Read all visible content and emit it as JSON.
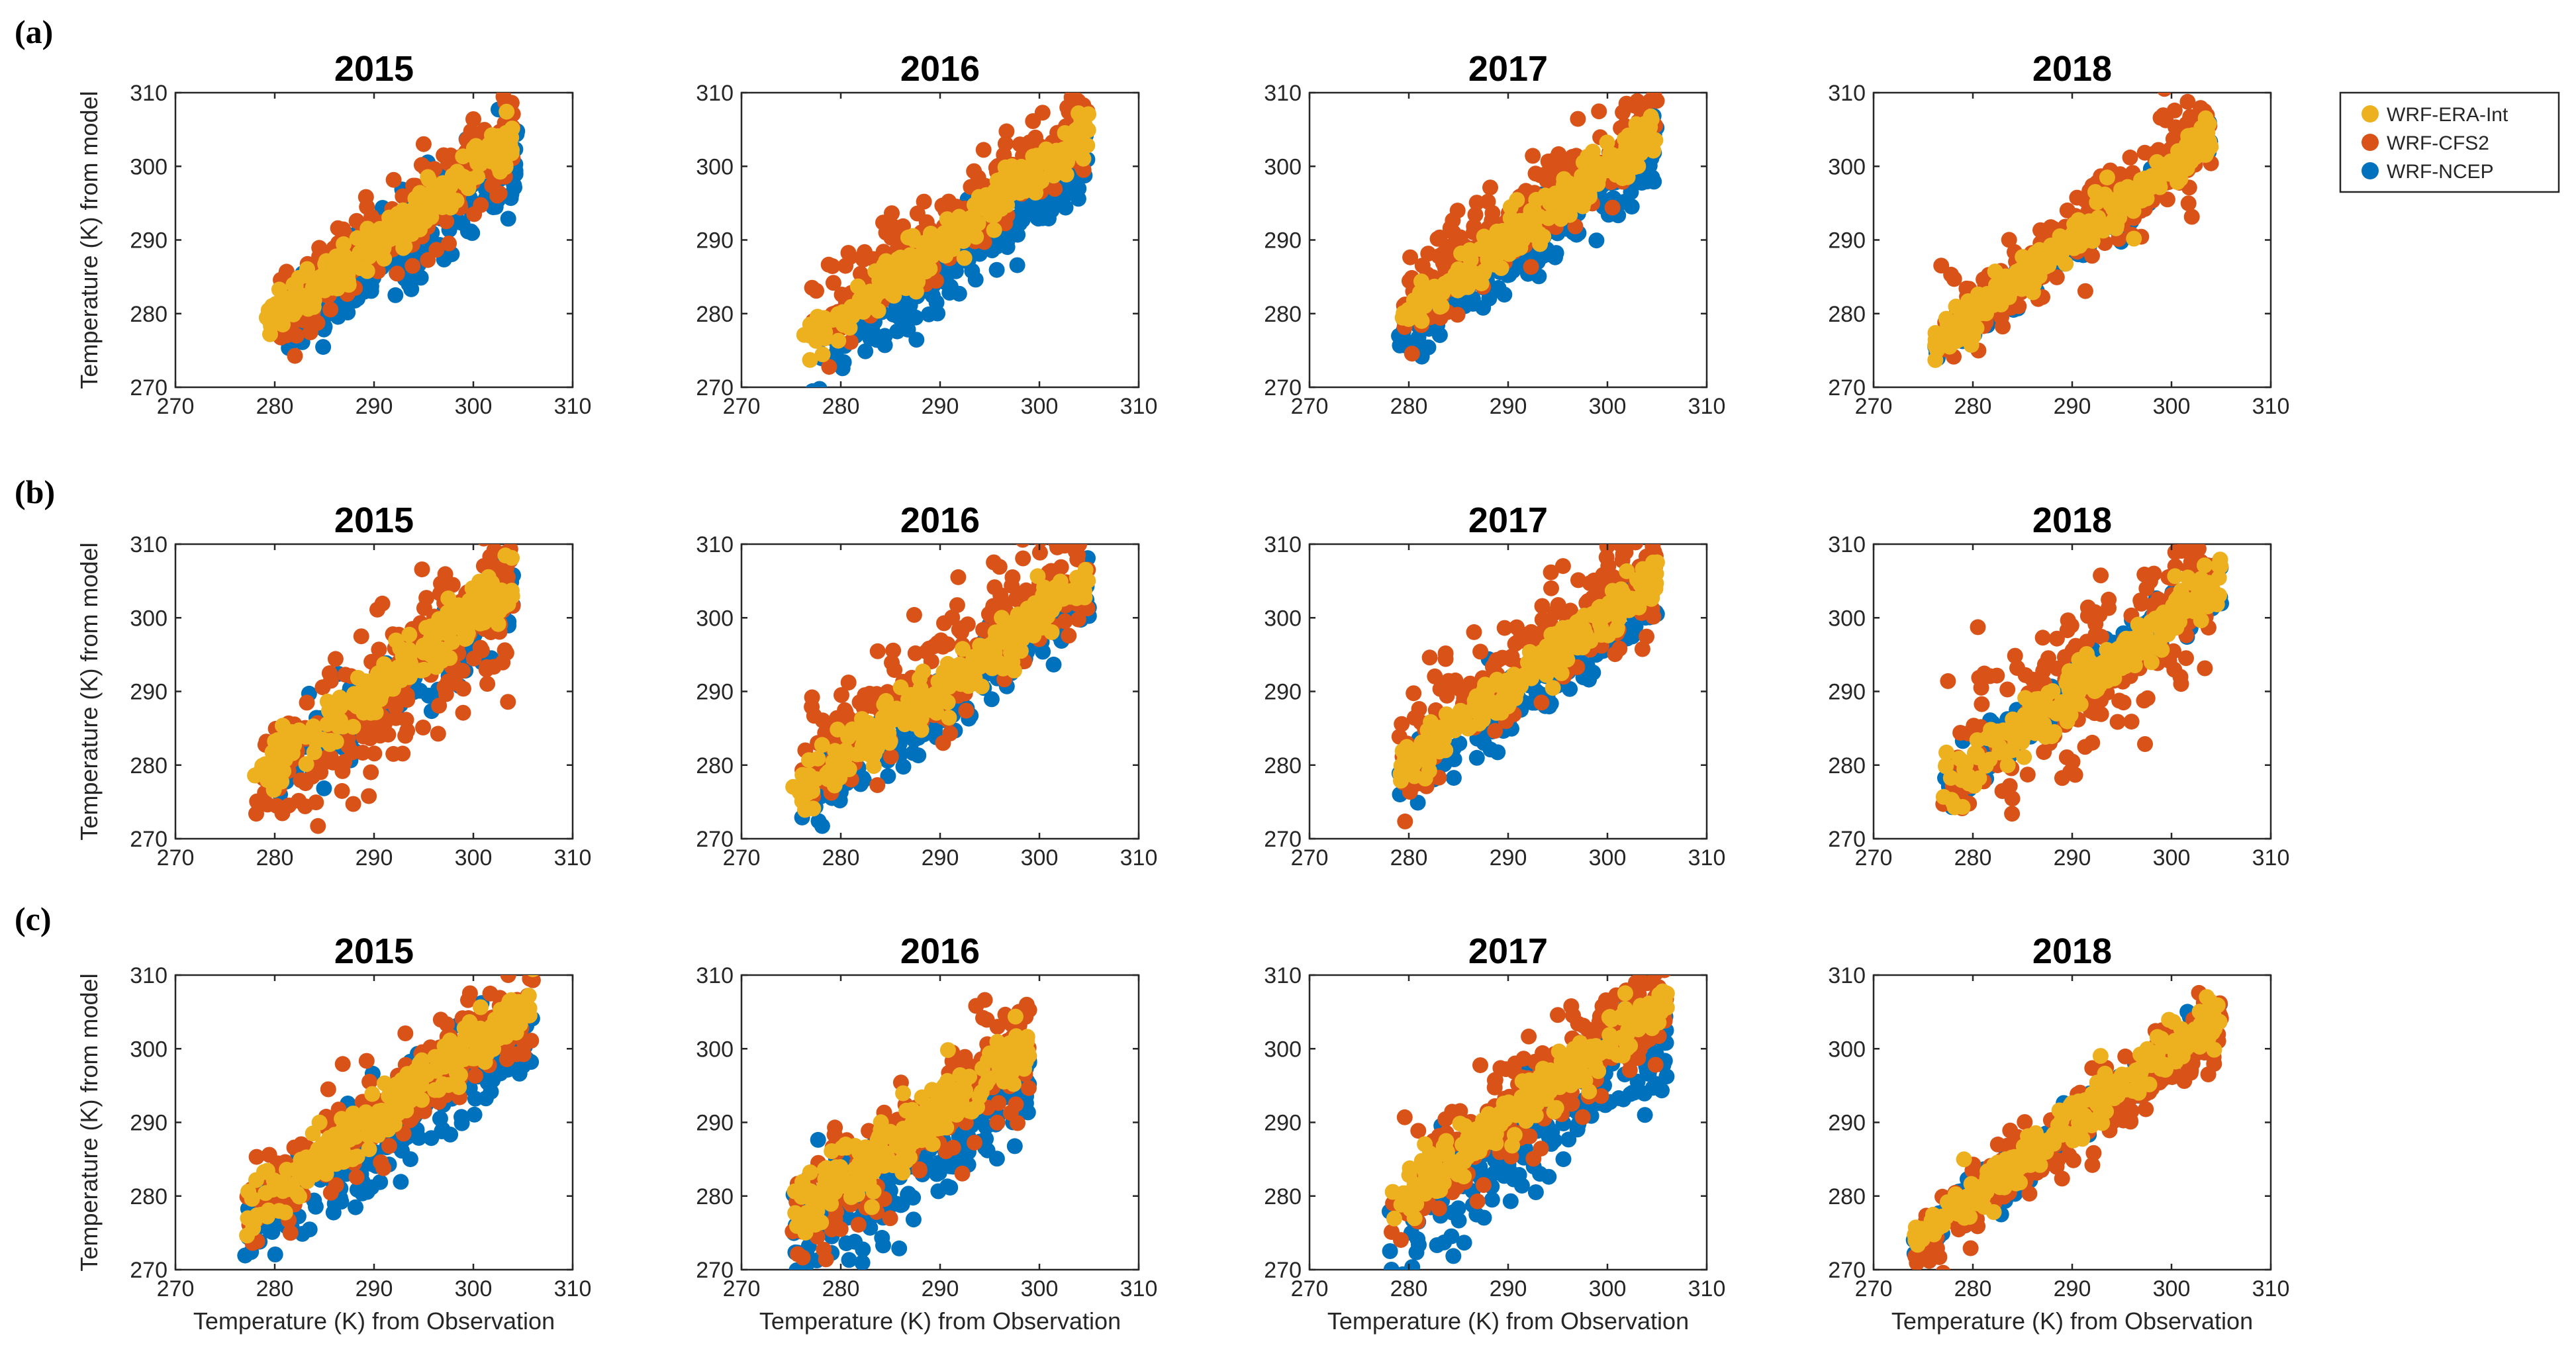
{
  "figure": {
    "row_labels": [
      "(a)",
      "(b)",
      "(c)"
    ],
    "legend": [
      {
        "name": "WRF-ERA-Int",
        "color": "#EDB120"
      },
      {
        "name": "WRF-CFS2",
        "color": "#D95319"
      },
      {
        "name": "WRF-NCEP",
        "color": "#0072BD"
      }
    ],
    "ylabel": "Temperature (K) from model",
    "xlabel": "Temperature (K) from Observation"
  },
  "chart_data": [
    {
      "id": "a-2015",
      "row": "(a)",
      "type": "scatter",
      "title": "2015",
      "xlim": [
        270,
        310
      ],
      "ylim": [
        270,
        310
      ],
      "xticks": [
        270,
        280,
        290,
        300,
        310
      ],
      "yticks": [
        270,
        280,
        290,
        300,
        310
      ],
      "ylabel": "Temperature (K) from model",
      "xlabel": "",
      "series": [
        {
          "name": "WRF-NCEP",
          "x_range": [
            281,
            304.5
          ],
          "bias": -3,
          "spread": 3.2,
          "seed": 11
        },
        {
          "name": "WRF-CFS2",
          "x_range": [
            280,
            304
          ],
          "bias": 0,
          "spread": 3.0,
          "seed": 12
        },
        {
          "name": "WRF-ERA-Int",
          "x_range": [
            279,
            304
          ],
          "bias": -0.5,
          "spread": 1.6,
          "seed": 13
        }
      ]
    },
    {
      "id": "a-2016",
      "row": "(a)",
      "type": "scatter",
      "title": "2016",
      "xlim": [
        270,
        310
      ],
      "ylim": [
        270,
        310
      ],
      "xticks": [
        270,
        280,
        290,
        300,
        310
      ],
      "yticks": [
        270,
        280,
        290,
        300,
        310
      ],
      "ylabel": "",
      "xlabel": "",
      "series": [
        {
          "name": "WRF-NCEP",
          "x_range": [
            277,
            305
          ],
          "bias": -4,
          "spread": 2.8,
          "seed": 21
        },
        {
          "name": "WRF-CFS2",
          "x_range": [
            277,
            305
          ],
          "bias": 1.5,
          "spread": 2.8,
          "seed": 22
        },
        {
          "name": "WRF-ERA-Int",
          "x_range": [
            276,
            305
          ],
          "bias": -0.5,
          "spread": 1.6,
          "seed": 23
        }
      ]
    },
    {
      "id": "a-2017",
      "row": "(a)",
      "type": "scatter",
      "title": "2017",
      "xlim": [
        270,
        310
      ],
      "ylim": [
        270,
        310
      ],
      "xticks": [
        270,
        280,
        290,
        300,
        310
      ],
      "yticks": [
        270,
        280,
        290,
        300,
        310
      ],
      "ylabel": "",
      "xlabel": "",
      "series": [
        {
          "name": "WRF-NCEP",
          "x_range": [
            279,
            305
          ],
          "bias": -2.5,
          "spread": 2.4,
          "seed": 31
        },
        {
          "name": "WRF-CFS2",
          "x_range": [
            279,
            305
          ],
          "bias": 2,
          "spread": 2.8,
          "seed": 32
        },
        {
          "name": "WRF-ERA-Int",
          "x_range": [
            279,
            305
          ],
          "bias": 0,
          "spread": 1.5,
          "seed": 33
        }
      ]
    },
    {
      "id": "a-2018",
      "row": "(a)",
      "type": "scatter",
      "title": "2018",
      "xlim": [
        270,
        310
      ],
      "ylim": [
        270,
        310
      ],
      "xticks": [
        270,
        280,
        290,
        300,
        310
      ],
      "yticks": [
        270,
        280,
        290,
        300,
        310
      ],
      "ylabel": "",
      "xlabel": "",
      "series": [
        {
          "name": "WRF-NCEP",
          "x_range": [
            276,
            304
          ],
          "bias": -0.5,
          "spread": 1.4,
          "seed": 41
        },
        {
          "name": "WRF-CFS2",
          "x_range": [
            276,
            304
          ],
          "bias": 0.5,
          "spread": 2.8,
          "seed": 42
        },
        {
          "name": "WRF-ERA-Int",
          "x_range": [
            276,
            304
          ],
          "bias": 0,
          "spread": 1.5,
          "seed": 43
        }
      ]
    },
    {
      "id": "b-2015",
      "row": "(b)",
      "type": "scatter",
      "title": "2015",
      "xlim": [
        270,
        310
      ],
      "ylim": [
        270,
        310
      ],
      "xticks": [
        270,
        280,
        290,
        300,
        310
      ],
      "yticks": [
        270,
        280,
        290,
        300,
        310
      ],
      "ylabel": "Temperature (K) from model",
      "xlabel": "",
      "series": [
        {
          "name": "WRF-NCEP",
          "x_range": [
            280,
            304
          ],
          "bias": -1,
          "spread": 2.5,
          "seed": 51
        },
        {
          "name": "WRF-CFS2",
          "x_range": [
            278,
            304
          ],
          "bias": -1,
          "spread": 5.0,
          "seed": 52
        },
        {
          "name": "WRF-ERA-Int",
          "x_range": [
            278,
            304
          ],
          "bias": 0.5,
          "spread": 1.8,
          "seed": 53
        }
      ]
    },
    {
      "id": "b-2016",
      "row": "(b)",
      "type": "scatter",
      "title": "2016",
      "xlim": [
        270,
        310
      ],
      "ylim": [
        270,
        310
      ],
      "xticks": [
        270,
        280,
        290,
        300,
        310
      ],
      "yticks": [
        270,
        280,
        290,
        300,
        310
      ],
      "ylabel": "",
      "xlabel": "",
      "series": [
        {
          "name": "WRF-NCEP",
          "x_range": [
            276,
            305
          ],
          "bias": -1.5,
          "spread": 2.5,
          "seed": 61
        },
        {
          "name": "WRF-CFS2",
          "x_range": [
            276,
            305
          ],
          "bias": 3,
          "spread": 4.0,
          "seed": 62
        },
        {
          "name": "WRF-ERA-Int",
          "x_range": [
            275,
            305
          ],
          "bias": 0.5,
          "spread": 1.8,
          "seed": 63
        }
      ]
    },
    {
      "id": "b-2017",
      "row": "(b)",
      "type": "scatter",
      "title": "2017",
      "xlim": [
        270,
        310
      ],
      "ylim": [
        270,
        310
      ],
      "xticks": [
        270,
        280,
        290,
        300,
        310
      ],
      "yticks": [
        270,
        280,
        290,
        300,
        310
      ],
      "ylabel": "",
      "xlabel": "",
      "series": [
        {
          "name": "WRF-NCEP",
          "x_range": [
            279,
            305
          ],
          "bias": -1.5,
          "spread": 2.3,
          "seed": 71
        },
        {
          "name": "WRF-CFS2",
          "x_range": [
            279,
            305
          ],
          "bias": 2.5,
          "spread": 3.8,
          "seed": 72
        },
        {
          "name": "WRF-ERA-Int",
          "x_range": [
            279,
            305
          ],
          "bias": 0.5,
          "spread": 1.6,
          "seed": 73
        }
      ]
    },
    {
      "id": "b-2018",
      "row": "(b)",
      "type": "scatter",
      "title": "2018",
      "xlim": [
        270,
        310
      ],
      "ylim": [
        270,
        310
      ],
      "xticks": [
        270,
        280,
        290,
        300,
        310
      ],
      "yticks": [
        270,
        280,
        290,
        300,
        310
      ],
      "ylabel": "",
      "xlabel": "",
      "series": [
        {
          "name": "WRF-NCEP",
          "x_range": [
            277,
            305
          ],
          "bias": 0,
          "spread": 1.6,
          "seed": 81
        },
        {
          "name": "WRF-CFS2",
          "x_range": [
            277,
            304
          ],
          "bias": 1,
          "spread": 5.5,
          "seed": 82
        },
        {
          "name": "WRF-ERA-Int",
          "x_range": [
            277,
            305
          ],
          "bias": 0,
          "spread": 1.8,
          "seed": 83
        }
      ]
    },
    {
      "id": "c-2015",
      "row": "(c)",
      "type": "scatter",
      "title": "2015",
      "xlim": [
        270,
        310
      ],
      "ylim": [
        270,
        310
      ],
      "xticks": [
        270,
        280,
        290,
        300,
        310
      ],
      "yticks": [
        270,
        280,
        290,
        300,
        310
      ],
      "ylabel": "Temperature (K) from model",
      "xlabel": "Temperature (K) from Observation",
      "series": [
        {
          "name": "WRF-NCEP",
          "x_range": [
            277,
            306
          ],
          "bias": -3,
          "spread": 3.5,
          "seed": 91
        },
        {
          "name": "WRF-CFS2",
          "x_range": [
            277,
            306
          ],
          "bias": 0.5,
          "spread": 3.2,
          "seed": 92
        },
        {
          "name": "WRF-ERA-Int",
          "x_range": [
            277,
            306
          ],
          "bias": 0.5,
          "spread": 1.8,
          "seed": 93
        }
      ]
    },
    {
      "id": "c-2016",
      "row": "(c)",
      "type": "scatter",
      "title": "2016",
      "xlim": [
        270,
        310
      ],
      "ylim": [
        270,
        310
      ],
      "xticks": [
        270,
        280,
        290,
        300,
        310
      ],
      "yticks": [
        270,
        280,
        290,
        300,
        310
      ],
      "ylabel": "",
      "xlabel": "Temperature (K) from Observation",
      "series": [
        {
          "name": "WRF-NCEP",
          "x_range": [
            275,
            299
          ],
          "bias": -2,
          "spread": 3.5,
          "seed": 101
        },
        {
          "name": "WRF-CFS2",
          "x_range": [
            275,
            299
          ],
          "bias": 1.5,
          "spread": 4.0,
          "seed": 102
        },
        {
          "name": "WRF-ERA-Int",
          "x_range": [
            275,
            299
          ],
          "bias": 2,
          "spread": 2.0,
          "seed": 103
        }
      ]
    },
    {
      "id": "c-2017",
      "row": "(c)",
      "type": "scatter",
      "title": "2017",
      "xlim": [
        270,
        310
      ],
      "ylim": [
        270,
        310
      ],
      "xticks": [
        270,
        280,
        290,
        300,
        310
      ],
      "yticks": [
        270,
        280,
        290,
        300,
        310
      ],
      "ylabel": "",
      "xlabel": "Temperature (K) from Observation",
      "series": [
        {
          "name": "WRF-NCEP",
          "x_range": [
            278,
            306
          ],
          "bias": -4,
          "spread": 3.8,
          "seed": 111
        },
        {
          "name": "WRF-CFS2",
          "x_range": [
            278,
            306
          ],
          "bias": 1,
          "spread": 4.0,
          "seed": 112
        },
        {
          "name": "WRF-ERA-Int",
          "x_range": [
            278,
            306
          ],
          "bias": 1,
          "spread": 1.8,
          "seed": 113
        }
      ]
    },
    {
      "id": "c-2018",
      "row": "(c)",
      "type": "scatter",
      "title": "2018",
      "xlim": [
        270,
        310
      ],
      "ylim": [
        270,
        310
      ],
      "xticks": [
        270,
        280,
        290,
        300,
        310
      ],
      "yticks": [
        270,
        280,
        290,
        300,
        310
      ],
      "ylabel": "",
      "xlabel": "Temperature (K) from Observation",
      "series": [
        {
          "name": "WRF-NCEP",
          "x_range": [
            274,
            305
          ],
          "bias": -0.5,
          "spread": 1.4,
          "seed": 121
        },
        {
          "name": "WRF-CFS2",
          "x_range": [
            274,
            305
          ],
          "bias": -1,
          "spread": 2.6,
          "seed": 122
        },
        {
          "name": "WRF-ERA-Int",
          "x_range": [
            274,
            305
          ],
          "bias": 0,
          "spread": 1.5,
          "seed": 123
        }
      ]
    }
  ]
}
